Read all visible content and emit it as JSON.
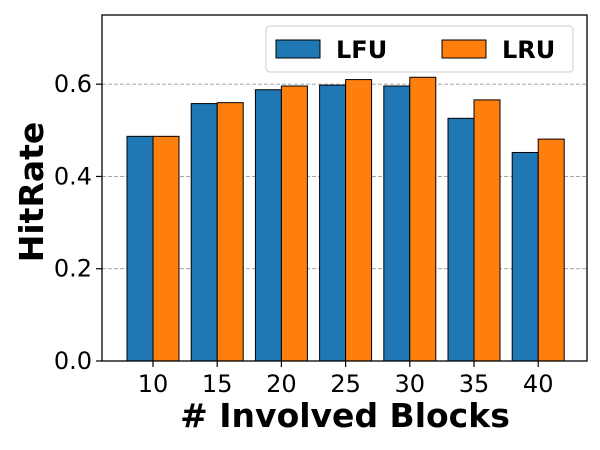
{
  "chart_data": {
    "type": "bar",
    "title": "",
    "xlabel": "# Involved Blocks",
    "ylabel": "HitRate",
    "categories": [
      "10",
      "15",
      "20",
      "25",
      "30",
      "35",
      "40"
    ],
    "series": [
      {
        "name": "LFU",
        "color": "#1f77b4",
        "values": [
          0.487,
          0.558,
          0.588,
          0.598,
          0.596,
          0.526,
          0.452
        ]
      },
      {
        "name": "LRU",
        "color": "#ff7f0e",
        "values": [
          0.487,
          0.56,
          0.596,
          0.61,
          0.615,
          0.566,
          0.481
        ]
      }
    ],
    "ylim": [
      0,
      0.75
    ],
    "yticks": [
      "0.0",
      "0.2",
      "0.4",
      "0.6"
    ],
    "grid": "horizontal dashed",
    "legend_position": "top-right",
    "legend_columns": 2
  }
}
